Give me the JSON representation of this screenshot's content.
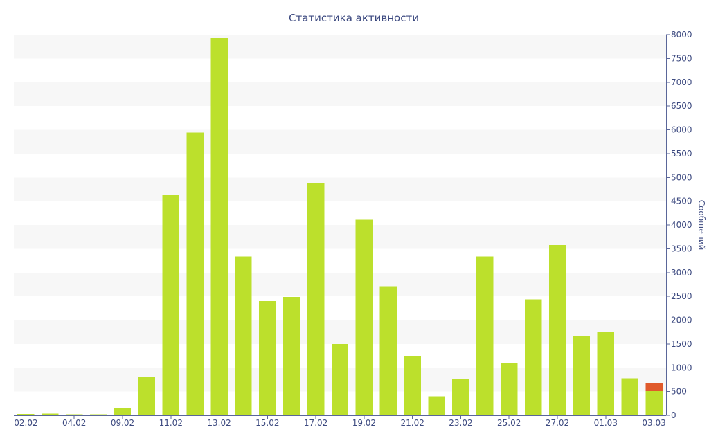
{
  "chart_data": {
    "type": "bar",
    "stacked": true,
    "title": "Статистика активности",
    "xlabel": "",
    "ylabel": "Сообщений",
    "y_axis_side": "right",
    "ylim": [
      0,
      8000
    ],
    "ytick_step": 500,
    "grid": true,
    "legend": "none",
    "categories": [
      "02.02",
      "",
      "04.02",
      "",
      "09.02",
      "",
      "11.02",
      "",
      "13.02",
      "",
      "15.02",
      "",
      "17.02",
      "",
      "19.02",
      "",
      "21.02",
      "",
      "23.02",
      "",
      "25.02",
      "",
      "27.02",
      "",
      "01.03",
      "",
      "03.03"
    ],
    "series": [
      {
        "color": "#bce02c",
        "values": [
          30,
          40,
          25,
          20,
          150,
          800,
          4640,
          5940,
          7930,
          3340,
          2400,
          2490,
          4870,
          1500,
          4110,
          2710,
          1250,
          400,
          770,
          3340,
          1100,
          2440,
          3580,
          1670,
          1760,
          780,
          510
        ]
      },
      {
        "color": "#e05a2b",
        "values": [
          0,
          0,
          0,
          0,
          0,
          0,
          0,
          0,
          0,
          0,
          0,
          0,
          0,
          0,
          0,
          0,
          0,
          0,
          0,
          0,
          0,
          0,
          0,
          0,
          0,
          0,
          160
        ]
      }
    ]
  },
  "colors": {
    "band": "#f7f7f7",
    "text": "#3d4a80",
    "axis": "#5a6699"
  }
}
